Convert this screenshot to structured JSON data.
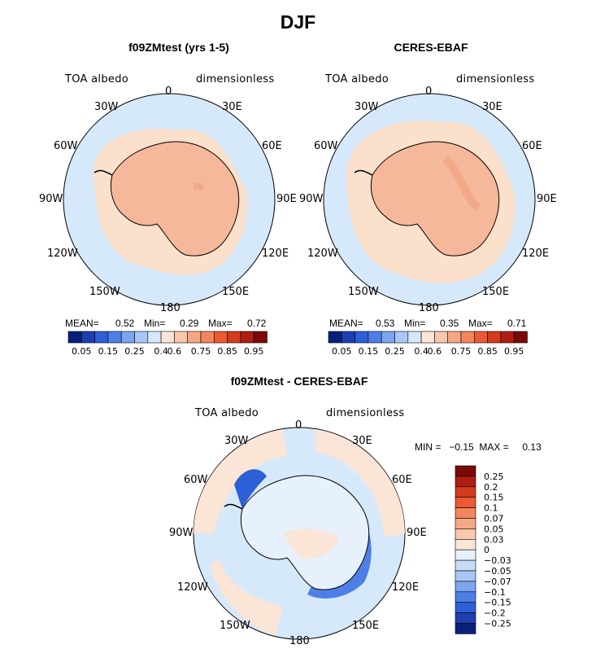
{
  "page_title": "DJF",
  "colors": {
    "ocean_light": "#d6e9fb",
    "ocean_pale": "#e6f1fc",
    "land": "#f7b89a",
    "land_alt": "#f9c6ae",
    "fringe": "#fbd9c4",
    "coast": "#000000"
  },
  "chart_data": [
    {
      "type": "heatmap",
      "projection": "south-polar-stereographic",
      "title": "f09ZMtest (yrs 1-5)",
      "left_label": "TOA albedo",
      "right_label": "dimensionless",
      "longitude_labels": [
        "0",
        "30E",
        "60E",
        "90E",
        "120E",
        "150E",
        "180",
        "150W",
        "120W",
        "90W",
        "60W",
        "30W"
      ],
      "stats": {
        "mean_label": "MEAN=",
        "mean": "0.52",
        "min_label": "Min=",
        "min": "0.29",
        "max_label": "Max=",
        "max": "0.72"
      },
      "colorbar": {
        "colors": [
          "#08207a",
          "#1d3fb0",
          "#2d5fd6",
          "#4d7fe6",
          "#7aa5ef",
          "#a9c7f5",
          "#d6e6fb",
          "#fbe5d6",
          "#f8c7ac",
          "#f5a883",
          "#f3865e",
          "#ec5a34",
          "#d43a1c",
          "#ad1f11",
          "#7a0a08"
        ],
        "tick_labels": [
          "0.05",
          "0.15",
          "0.25",
          "0.4",
          "0.6",
          "0.75",
          "0.85",
          "0.95"
        ]
      }
    },
    {
      "type": "heatmap",
      "projection": "south-polar-stereographic",
      "title": "CERES-EBAF",
      "left_label": "TOA albedo",
      "right_label": "dimensionless",
      "longitude_labels": [
        "0",
        "30E",
        "60E",
        "90E",
        "120E",
        "150E",
        "180",
        "150W",
        "120W",
        "90W",
        "60W",
        "30W"
      ],
      "stats": {
        "mean_label": "MEAN=",
        "mean": "0.53",
        "min_label": "Min=",
        "min": "0.35",
        "max_label": "Max=",
        "max": "0.71"
      },
      "colorbar": {
        "colors": [
          "#08207a",
          "#1d3fb0",
          "#2d5fd6",
          "#4d7fe6",
          "#7aa5ef",
          "#a9c7f5",
          "#d6e6fb",
          "#fbe5d6",
          "#f8c7ac",
          "#f5a883",
          "#f3865e",
          "#ec5a34",
          "#d43a1c",
          "#ad1f11",
          "#7a0a08"
        ],
        "tick_labels": [
          "0.05",
          "0.15",
          "0.25",
          "0.4",
          "0.6",
          "0.75",
          "0.85",
          "0.95"
        ]
      }
    },
    {
      "type": "heatmap",
      "projection": "south-polar-stereographic",
      "title": "f09ZMtest - CERES-EBAF",
      "left_label": "TOA albedo",
      "right_label": "dimensionless",
      "longitude_labels": [
        "0",
        "30E",
        "60E",
        "90E",
        "120E",
        "150E",
        "180",
        "150W",
        "120W",
        "90W",
        "60W",
        "30W"
      ],
      "stats_line": "MIN =   −0.15  MAX =     0.13",
      "colorbar": {
        "colors": [
          "#7a0a08",
          "#ad1f11",
          "#d43a1c",
          "#ec5a34",
          "#f3865e",
          "#f5a883",
          "#f8c7ac",
          "#fbe5d6",
          "#e8f1fb",
          "#c7dbf7",
          "#a9c7f5",
          "#7aa5ef",
          "#4d7fe6",
          "#2d5fd6",
          "#1d3fb0",
          "#08207a"
        ],
        "tick_labels": [
          "0.25",
          "0.2",
          "0.15",
          "0.1",
          "0.07",
          "0.05",
          "0.03",
          "0",
          "−0.03",
          "−0.05",
          "−0.07",
          "−0.1",
          "−0.15",
          "−0.2",
          "−0.25"
        ]
      }
    }
  ]
}
